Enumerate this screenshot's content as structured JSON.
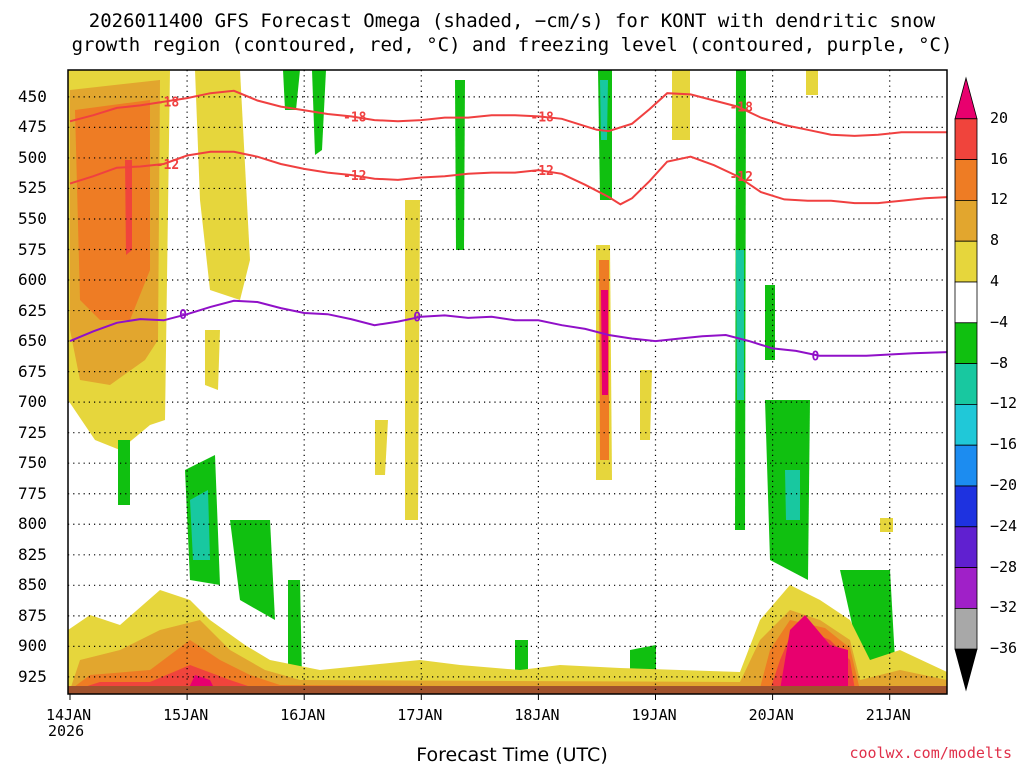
{
  "title_line1": "2026011400 GFS Forecast Omega (shaded, −cm/s) for KONT with dendritic snow",
  "title_line2": "growth region (contoured, red, °C) and freezing level (contoured, purple, °C)",
  "xlabel": "Forecast Time (UTC)",
  "credit": "coolwx.com/modelts",
  "year_label": "2026",
  "chart_data": {
    "type": "heatmap",
    "x": [
      "14JAN",
      "15JAN",
      "16JAN",
      "17JAN",
      "18JAN",
      "19JAN",
      "20JAN",
      "21JAN"
    ],
    "xlabel": "Forecast Time (UTC)",
    "y_ticks": [
      450,
      475,
      500,
      525,
      550,
      575,
      600,
      625,
      650,
      675,
      700,
      725,
      750,
      775,
      800,
      825,
      850,
      875,
      900,
      925
    ],
    "ylim": [
      939,
      428
    ],
    "grid": true,
    "colorbar": {
      "labels": [
        "20",
        "16",
        "12",
        "8",
        "4",
        "−4",
        "−8",
        "−12",
        "−16",
        "−20",
        "−24",
        "−28",
        "−32",
        "−36"
      ],
      "colors": [
        "#e8006e",
        "#f0443c",
        "#ee7c24",
        "#e2a62e",
        "#e6d63c",
        "#ffffff",
        "#10c010",
        "#18c8a0",
        "#20c8d8",
        "#1c8cf0",
        "#1e32e0",
        "#6020d0",
        "#a020c8",
        "#a8a8a8",
        "#000000"
      ]
    },
    "contours": [
      {
        "label": "-18",
        "color": "#f04040",
        "x": [
          14.0,
          14.2,
          14.4,
          14.6,
          14.8,
          15.0,
          15.2,
          15.4,
          15.6,
          15.8,
          16.0,
          16.2,
          16.4,
          16.6,
          16.8,
          17.0,
          17.2,
          17.4,
          17.6,
          17.8,
          18.0,
          18.2,
          18.4,
          18.5,
          18.6,
          18.8,
          18.95,
          19.1,
          19.3,
          19.5,
          19.7,
          19.9,
          20.1,
          20.3,
          20.5,
          20.7,
          20.9,
          21.1,
          21.3,
          21.5
        ],
        "p": [
          470,
          465,
          459,
          457,
          454,
          451,
          447,
          445,
          453,
          458,
          461,
          464,
          466,
          469,
          470,
          469,
          467,
          467,
          465,
          465,
          466,
          468,
          474,
          477,
          478,
          472,
          460,
          447,
          448,
          453,
          458,
          467,
          473,
          477,
          481,
          482,
          481,
          479,
          479,
          479
        ]
      },
      {
        "label": "-12",
        "color": "#f04040",
        "x": [
          14.0,
          14.2,
          14.4,
          14.6,
          14.8,
          15.0,
          15.2,
          15.4,
          15.6,
          15.8,
          16.0,
          16.2,
          16.4,
          16.6,
          16.8,
          17.0,
          17.2,
          17.4,
          17.6,
          17.8,
          18.0,
          18.2,
          18.4,
          18.6,
          18.7,
          18.8,
          18.95,
          19.1,
          19.3,
          19.5,
          19.7,
          19.9,
          20.1,
          20.3,
          20.5,
          20.7,
          20.9,
          21.1,
          21.3,
          21.5
        ],
        "p": [
          521,
          515,
          508,
          507,
          505,
          498,
          495,
          495,
          499,
          505,
          509,
          512,
          514,
          517,
          518,
          516,
          515,
          513,
          512,
          512,
          510,
          513,
          522,
          532,
          538,
          533,
          519,
          503,
          499,
          506,
          515,
          528,
          534,
          535,
          535,
          537,
          537,
          535,
          533,
          532
        ]
      },
      {
        "label": "0",
        "color": "#9010c8",
        "x": [
          14.0,
          14.2,
          14.4,
          14.6,
          14.8,
          15.0,
          15.2,
          15.4,
          15.6,
          15.8,
          16.0,
          16.2,
          16.4,
          16.6,
          16.8,
          17.0,
          17.2,
          17.4,
          17.6,
          17.8,
          18.0,
          18.2,
          18.4,
          18.6,
          18.8,
          19.0,
          19.2,
          19.4,
          19.6,
          19.8,
          20.0,
          20.2,
          20.4,
          20.6,
          20.8,
          21.0,
          21.2,
          21.5
        ],
        "p": [
          650,
          642,
          635,
          632,
          633,
          628,
          622,
          617,
          618,
          623,
          627,
          628,
          632,
          637,
          634,
          630,
          629,
          631,
          630,
          633,
          633,
          637,
          640,
          645,
          648,
          650,
          648,
          646,
          645,
          650,
          656,
          658,
          662,
          662,
          662,
          661,
          660,
          659
        ]
      }
    ]
  }
}
